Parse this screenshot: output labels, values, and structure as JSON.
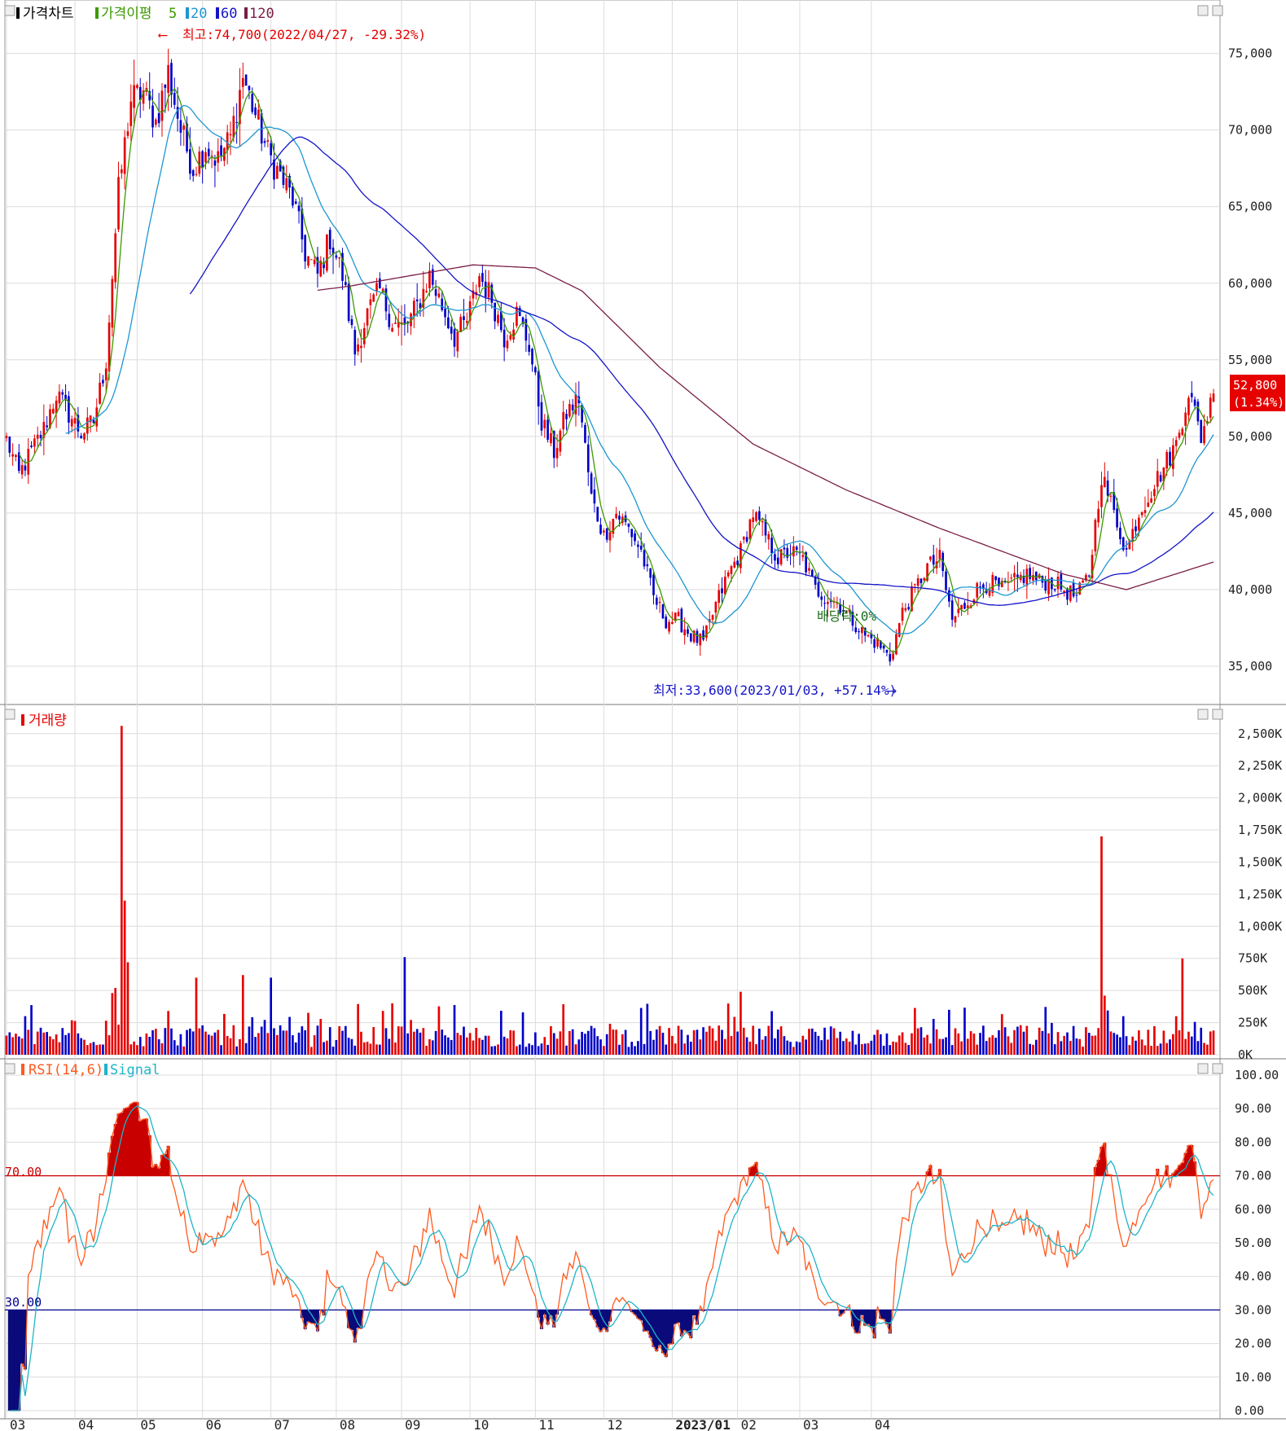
{
  "price_panel": {
    "legend": [
      "가격차트",
      "가격이평",
      "5",
      "20",
      "60",
      "120"
    ],
    "high_note": "최고:74,700(2022/04/27, -29.32%)",
    "low_note": "최저:33,600(2023/01/03, +57.14%)",
    "dividend_note": "배당락:0%",
    "current_price": "52,800",
    "current_change": "(1.34%)"
  },
  "volume_panel": {
    "legend": "거래량"
  },
  "rsi_panel": {
    "legend": [
      "RSI(14,6)",
      "Signal"
    ],
    "upper_label": "70.00",
    "lower_label": "30.00"
  },
  "colors": {
    "up": "#e60000",
    "down": "#0000c8",
    "ma5": "#3c9a00",
    "ma20": "#1e96d2",
    "ma60": "#1414c8",
    "ma120": "#7a1e46",
    "rsi": "#ff5a1e",
    "signal": "#1eb4c8",
    "grid": "#dcdcdc",
    "frame": "#9a9a9a"
  },
  "chart_data": [
    {
      "type": "candlestick",
      "title": "가격차트",
      "y_ticks": [
        "75,000",
        "70,000",
        "65,000",
        "60,000",
        "55,000",
        "50,000",
        "45,000",
        "40,000",
        "35,000"
      ],
      "ylim": [
        32500,
        77000
      ],
      "x_ticks": [
        "03",
        "04",
        "05",
        "06",
        "07",
        "08",
        "09",
        "10",
        "11",
        "12",
        "2023/01",
        "02",
        "03",
        "04"
      ],
      "close_anchors": [
        [
          0,
          49800
        ],
        [
          4,
          47500
        ],
        [
          8,
          49000
        ],
        [
          12,
          50500
        ],
        [
          16,
          52800
        ],
        [
          20,
          51500
        ],
        [
          24,
          50200
        ],
        [
          28,
          51000
        ],
        [
          32,
          55000
        ],
        [
          36,
          66000
        ],
        [
          40,
          72000
        ],
        [
          44,
          72500
        ],
        [
          48,
          70500
        ],
        [
          52,
          73800
        ],
        [
          56,
          70000
        ],
        [
          60,
          67500
        ],
        [
          64,
          69000
        ],
        [
          68,
          68000
        ],
        [
          72,
          69500
        ],
        [
          76,
          73500
        ],
        [
          80,
          71000
        ],
        [
          84,
          68500
        ],
        [
          88,
          67000
        ],
        [
          92,
          65500
        ],
        [
          96,
          62000
        ],
        [
          100,
          60500
        ],
        [
          104,
          63000
        ],
        [
          108,
          60500
        ],
        [
          112,
          55500
        ],
        [
          116,
          58000
        ],
        [
          120,
          59500
        ],
        [
          124,
          57500
        ],
        [
          128,
          57000
        ],
        [
          132,
          58500
        ],
        [
          136,
          60500
        ],
        [
          140,
          58500
        ],
        [
          144,
          56500
        ],
        [
          148,
          57500
        ],
        [
          152,
          60500
        ],
        [
          156,
          59000
        ],
        [
          160,
          56500
        ],
        [
          164,
          58000
        ],
        [
          168,
          56000
        ],
        [
          172,
          51000
        ],
        [
          176,
          49000
        ],
        [
          180,
          51500
        ],
        [
          184,
          52500
        ],
        [
          188,
          46000
        ],
        [
          192,
          43500
        ],
        [
          196,
          45000
        ],
        [
          200,
          44000
        ],
        [
          204,
          42500
        ],
        [
          208,
          39500
        ],
        [
          212,
          38000
        ],
        [
          216,
          38000
        ],
        [
          220,
          37000
        ],
        [
          224,
          36500
        ],
        [
          228,
          39000
        ],
        [
          232,
          41000
        ],
        [
          236,
          42500
        ],
        [
          240,
          45000
        ],
        [
          244,
          43500
        ],
        [
          248,
          42000
        ],
        [
          252,
          42500
        ],
        [
          256,
          42000
        ],
        [
          260,
          40000
        ],
        [
          264,
          39500
        ],
        [
          268,
          39000
        ],
        [
          272,
          38000
        ],
        [
          276,
          37000
        ],
        [
          280,
          36500
        ],
        [
          284,
          35500
        ],
        [
          288,
          38500
        ],
        [
          292,
          40000
        ],
        [
          296,
          41500
        ],
        [
          300,
          42000
        ],
        [
          304,
          38000
        ],
        [
          308,
          39000
        ],
        [
          312,
          40000
        ],
        [
          316,
          40500
        ],
        [
          320,
          40000
        ],
        [
          324,
          40500
        ],
        [
          328,
          41000
        ],
        [
          332,
          40500
        ],
        [
          336,
          40500
        ],
        [
          340,
          40000
        ],
        [
          344,
          39500
        ],
        [
          348,
          41000
        ],
        [
          352,
          47500
        ],
        [
          356,
          45000
        ],
        [
          360,
          42500
        ],
        [
          364,
          45000
        ],
        [
          368,
          46500
        ],
        [
          372,
          48000
        ],
        [
          376,
          49500
        ],
        [
          380,
          53000
        ],
        [
          384,
          50000
        ],
        [
          388,
          52800
        ]
      ],
      "n_days": 389,
      "moving_averages": [
        {
          "name": "5",
          "start": 4
        },
        {
          "name": "20",
          "start": 19
        },
        {
          "name": "60",
          "start": 59
        },
        {
          "name": "120",
          "start": 0
        }
      ],
      "ma_notes": "MA120 computed with pre-period history"
    },
    {
      "type": "bar",
      "title": "거래량",
      "y_ticks": [
        "2,500K",
        "2,250K",
        "2,000K",
        "1,750K",
        "1,500K",
        "1,250K",
        "1,000K",
        "750K",
        "500K",
        "250K",
        "0K"
      ],
      "ylim": [
        0,
        2600000
      ],
      "spikes": [
        [
          37,
          2560000
        ],
        [
          38,
          1200000
        ],
        [
          39,
          720000
        ],
        [
          35,
          520000
        ],
        [
          34,
          480000
        ],
        [
          128,
          760000
        ],
        [
          61,
          600000
        ],
        [
          76,
          620000
        ],
        [
          85,
          600000
        ],
        [
          236,
          490000
        ],
        [
          303,
          350000
        ],
        [
          352,
          1700000
        ],
        [
          353,
          460000
        ],
        [
          376,
          300000
        ],
        [
          378,
          750000
        ]
      ]
    },
    {
      "type": "line",
      "title": "RSI(14,6)",
      "series": [
        {
          "name": "RSI(14,6)"
        },
        {
          "name": "Signal"
        }
      ],
      "y_ticks": [
        "100.00",
        "90.00",
        "80.00",
        "70.00",
        "60.00",
        "50.00",
        "40.00",
        "30.00",
        "20.00",
        "10.00",
        "0.00"
      ],
      "ylim": [
        0,
        100
      ],
      "levels": [
        70,
        30
      ]
    }
  ]
}
